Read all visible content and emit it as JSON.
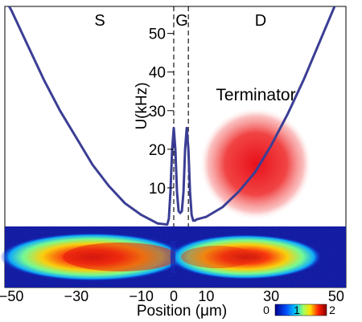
{
  "chart_data": {
    "type": "line",
    "region_labels": [
      "S",
      "G",
      "D"
    ],
    "annotation": "Terminator",
    "xlabel": "Position  (μm)",
    "ylabel": "U(kHz)",
    "xlim": [
      -52,
      53
    ],
    "ylim": [
      0,
      57
    ],
    "x_ticks": [
      -50,
      -30,
      -10,
      0,
      10,
      30,
      50
    ],
    "x_tick_labels": [
      "−50",
      "−30",
      "−10",
      "0",
      "10",
      "30",
      "50"
    ],
    "y_ticks": [
      10,
      20,
      30,
      40,
      50
    ],
    "y_tick_labels": [
      "10",
      "20",
      "30",
      "40",
      "50"
    ],
    "gate_lines_x": [
      0,
      4.5
    ],
    "series": [
      {
        "color": "#3b3e94",
        "x": [
          -52,
          -50,
          -45,
          -40,
          -35,
          -30,
          -25,
          -20,
          -15,
          -10,
          -5,
          -2,
          -1.5,
          -1,
          -0.5,
          0,
          0.5,
          1,
          1.5,
          2,
          2.5,
          3,
          3.5,
          4,
          4.5,
          5,
          5.5,
          6,
          6.5,
          7,
          10,
          15,
          20,
          25,
          30,
          35,
          40,
          45,
          50,
          53
        ],
        "y": [
          59,
          56,
          47,
          38,
          30,
          23,
          16,
          10.5,
          6,
          3,
          0.8,
          0.5,
          2,
          9,
          20,
          25.5,
          20,
          9,
          4,
          3.5,
          4,
          9,
          20,
          25.5,
          20,
          9,
          3,
          1.5,
          1.5,
          1.8,
          2.5,
          5,
          9,
          14,
          21,
          29,
          38,
          48,
          58,
          65
        ]
      }
    ],
    "colorbar": {
      "ticks": [
        "0",
        "1",
        "2"
      ],
      "colors": [
        "#00008b",
        "#00bfff",
        "#ffff00",
        "#ff0000",
        "#8b0000"
      ]
    }
  }
}
